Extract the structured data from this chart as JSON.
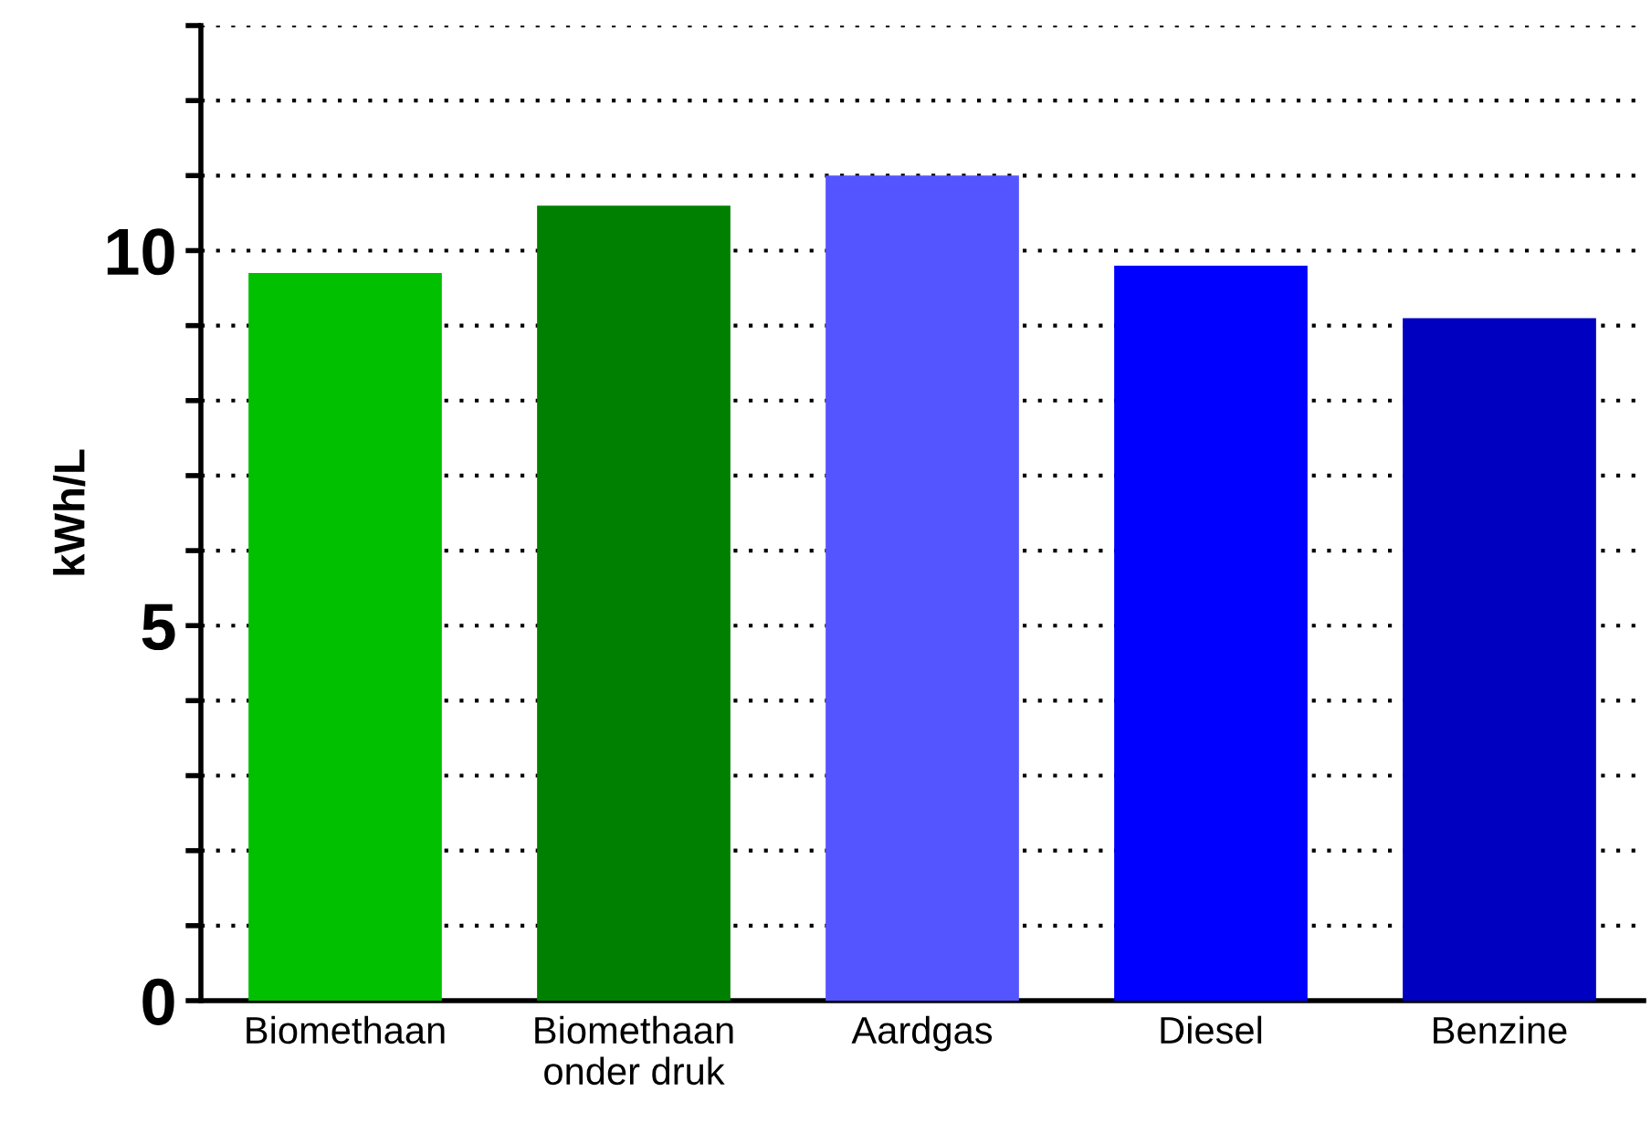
{
  "chart_data": {
    "type": "bar",
    "ylabel": "kWh/L",
    "categories": [
      "Biomethaan",
      "Biomethaan\nonder druk",
      "Aardgas",
      "Diesel",
      "Benzine"
    ],
    "values": [
      9.7,
      10.6,
      11.0,
      9.8,
      9.1
    ],
    "colors": [
      "#00c000",
      "#008000",
      "#5555ff",
      "#0000ff",
      "#0000c0"
    ],
    "ylim": [
      0,
      13
    ],
    "yticks": [
      0,
      {
        "value": 1,
        "label": null
      },
      {
        "value": 2,
        "label": null
      },
      {
        "value": 3,
        "label": null
      },
      {
        "value": 4,
        "label": null
      },
      5,
      {
        "value": 6,
        "label": null
      },
      {
        "value": 7,
        "label": null
      },
      {
        "value": 8,
        "label": null
      },
      {
        "value": 9,
        "label": null
      },
      10,
      {
        "value": 11,
        "label": null
      },
      {
        "value": 12,
        "label": null
      },
      {
        "value": 13,
        "label": null
      }
    ],
    "grid": "y"
  }
}
